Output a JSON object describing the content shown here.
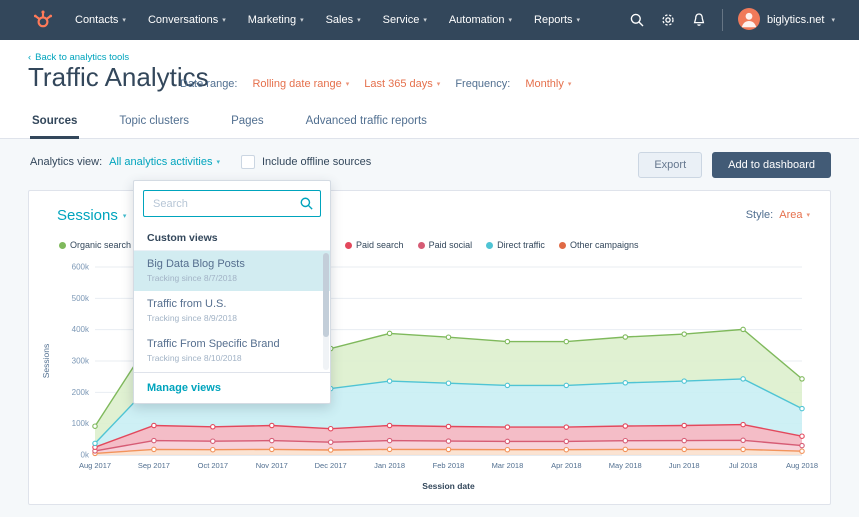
{
  "topnav": {
    "items": [
      "Contacts",
      "Conversations",
      "Marketing",
      "Sales",
      "Service",
      "Automation",
      "Reports"
    ],
    "account": "biglytics.net"
  },
  "header": {
    "back_link": "Back to analytics tools",
    "title": "Traffic Analytics",
    "date_range_label": "Date range:",
    "date_range_value": "Rolling date range",
    "period_value": "Last 365 days",
    "frequency_label": "Frequency:",
    "frequency_value": "Monthly"
  },
  "tabs": [
    {
      "label": "Sources",
      "active": true
    },
    {
      "label": "Topic clusters",
      "active": false
    },
    {
      "label": "Pages",
      "active": false
    },
    {
      "label": "Advanced traffic reports",
      "active": false
    }
  ],
  "controls": {
    "analytics_view_label": "Analytics view:",
    "analytics_view_value": "All analytics activities",
    "offline_checkbox_label": "Include offline sources",
    "offline_checkbox_checked": false,
    "export_button": "Export",
    "add_dashboard_button": "Add to dashboard"
  },
  "dropdown": {
    "search_placeholder": "Search",
    "section_header": "Custom views",
    "items": [
      {
        "title": "Big Data Blog Posts",
        "subtitle": "Tracking since 8/7/2018",
        "selected": true
      },
      {
        "title": "Traffic from U.S.",
        "subtitle": "Tracking since 8/9/2018",
        "selected": false
      },
      {
        "title": "Traffic From Specific Brand",
        "subtitle": "Tracking since 8/10/2018",
        "selected": false
      }
    ],
    "footer_link": "Manage views"
  },
  "chart": {
    "title": "Sessions",
    "style_label": "Style:",
    "style_value": "Area"
  },
  "chart_data": {
    "type": "area",
    "stacked": true,
    "title": "Sessions",
    "xlabel": "Session date",
    "ylabel": "Sessions",
    "ylim": [
      0,
      600000
    ],
    "ytick_step": 100000,
    "ytick_labels": [
      "0k",
      "100k",
      "200k",
      "300k",
      "400k",
      "500k",
      "600k"
    ],
    "grid": true,
    "legend_position": "top",
    "categories": [
      "Aug 2017",
      "Sep 2017",
      "Oct 2017",
      "Nov 2017",
      "Dec 2017",
      "Jan 2018",
      "Feb 2018",
      "Mar 2018",
      "Apr 2018",
      "May 2018",
      "Jun 2018",
      "Jul 2018",
      "Aug 2018"
    ],
    "legend": [
      {
        "label": "Organic search",
        "color": "#7fb95c"
      },
      {
        "label": "Paid search",
        "color": "#e3485c"
      },
      {
        "label": "Paid social",
        "color": "#d65c75"
      },
      {
        "label": "Direct traffic",
        "color": "#4fc4d4"
      },
      {
        "label": "Other campaigns",
        "color": "#e06a45"
      }
    ],
    "series": [
      {
        "name": "Other campaigns",
        "color": "#f2935c",
        "fill": "#fbe0cd",
        "values": [
          5000,
          18000,
          17000,
          18000,
          16000,
          18000,
          17500,
          17000,
          17000,
          18000,
          18000,
          18000,
          12000
        ]
      },
      {
        "name": "Paid social",
        "color": "#d65c75",
        "fill": "#f6cdd6",
        "values": [
          8000,
          28000,
          27000,
          28000,
          25000,
          28000,
          27000,
          26500,
          26500,
          27500,
          28000,
          29000,
          18000
        ]
      },
      {
        "name": "Paid search",
        "color": "#e3485c",
        "fill": "#f3b6c1",
        "values": [
          12000,
          48000,
          46000,
          48000,
          43000,
          48000,
          46500,
          45500,
          45500,
          47000,
          48000,
          50000,
          30000
        ]
      },
      {
        "name": "Direct traffic",
        "color": "#4fc4d4",
        "fill": "#c9eef4",
        "values": [
          12000,
          140000,
          135000,
          142000,
          128000,
          142000,
          138000,
          133000,
          133000,
          138000,
          142000,
          146000,
          88000
        ]
      },
      {
        "name": "Organic search",
        "color": "#7fb95c",
        "fill": "#ddefcd",
        "values": [
          55000,
          148000,
          143000,
          150000,
          128000,
          152000,
          147000,
          140000,
          140000,
          146000,
          150000,
          158000,
          95000
        ]
      }
    ]
  }
}
